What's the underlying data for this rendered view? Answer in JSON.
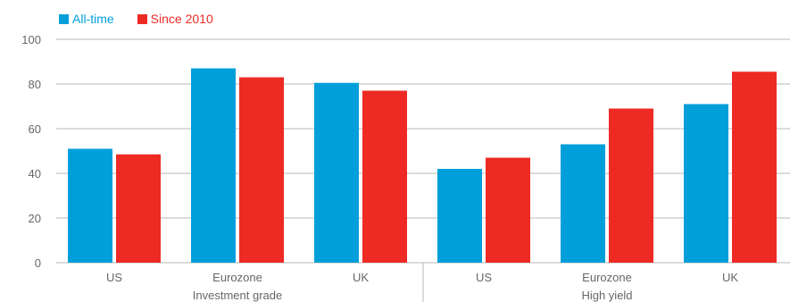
{
  "chart_data": {
    "type": "bar",
    "title": "",
    "xlabel": "",
    "ylabel": "",
    "ylim": [
      0,
      100
    ],
    "yticks": [
      0,
      20,
      40,
      60,
      80,
      100
    ],
    "grid": true,
    "legend_position": "top-left",
    "groups": [
      {
        "label": "Investment grade",
        "categories": [
          "US",
          "Eurozone",
          "UK"
        ]
      },
      {
        "label": "High yield",
        "categories": [
          "US",
          "Eurozone",
          "UK"
        ]
      }
    ],
    "categories": [
      "US",
      "Eurozone",
      "UK",
      "US",
      "Eurozone",
      "UK"
    ],
    "series": [
      {
        "name": "All-time",
        "color": "#009fda",
        "values": [
          51,
          87,
          80.5,
          42,
          53,
          71
        ]
      },
      {
        "name": "Since 2010",
        "color": "#ee2a24",
        "values": [
          48.5,
          83,
          77,
          47,
          69,
          85.5
        ]
      }
    ]
  }
}
